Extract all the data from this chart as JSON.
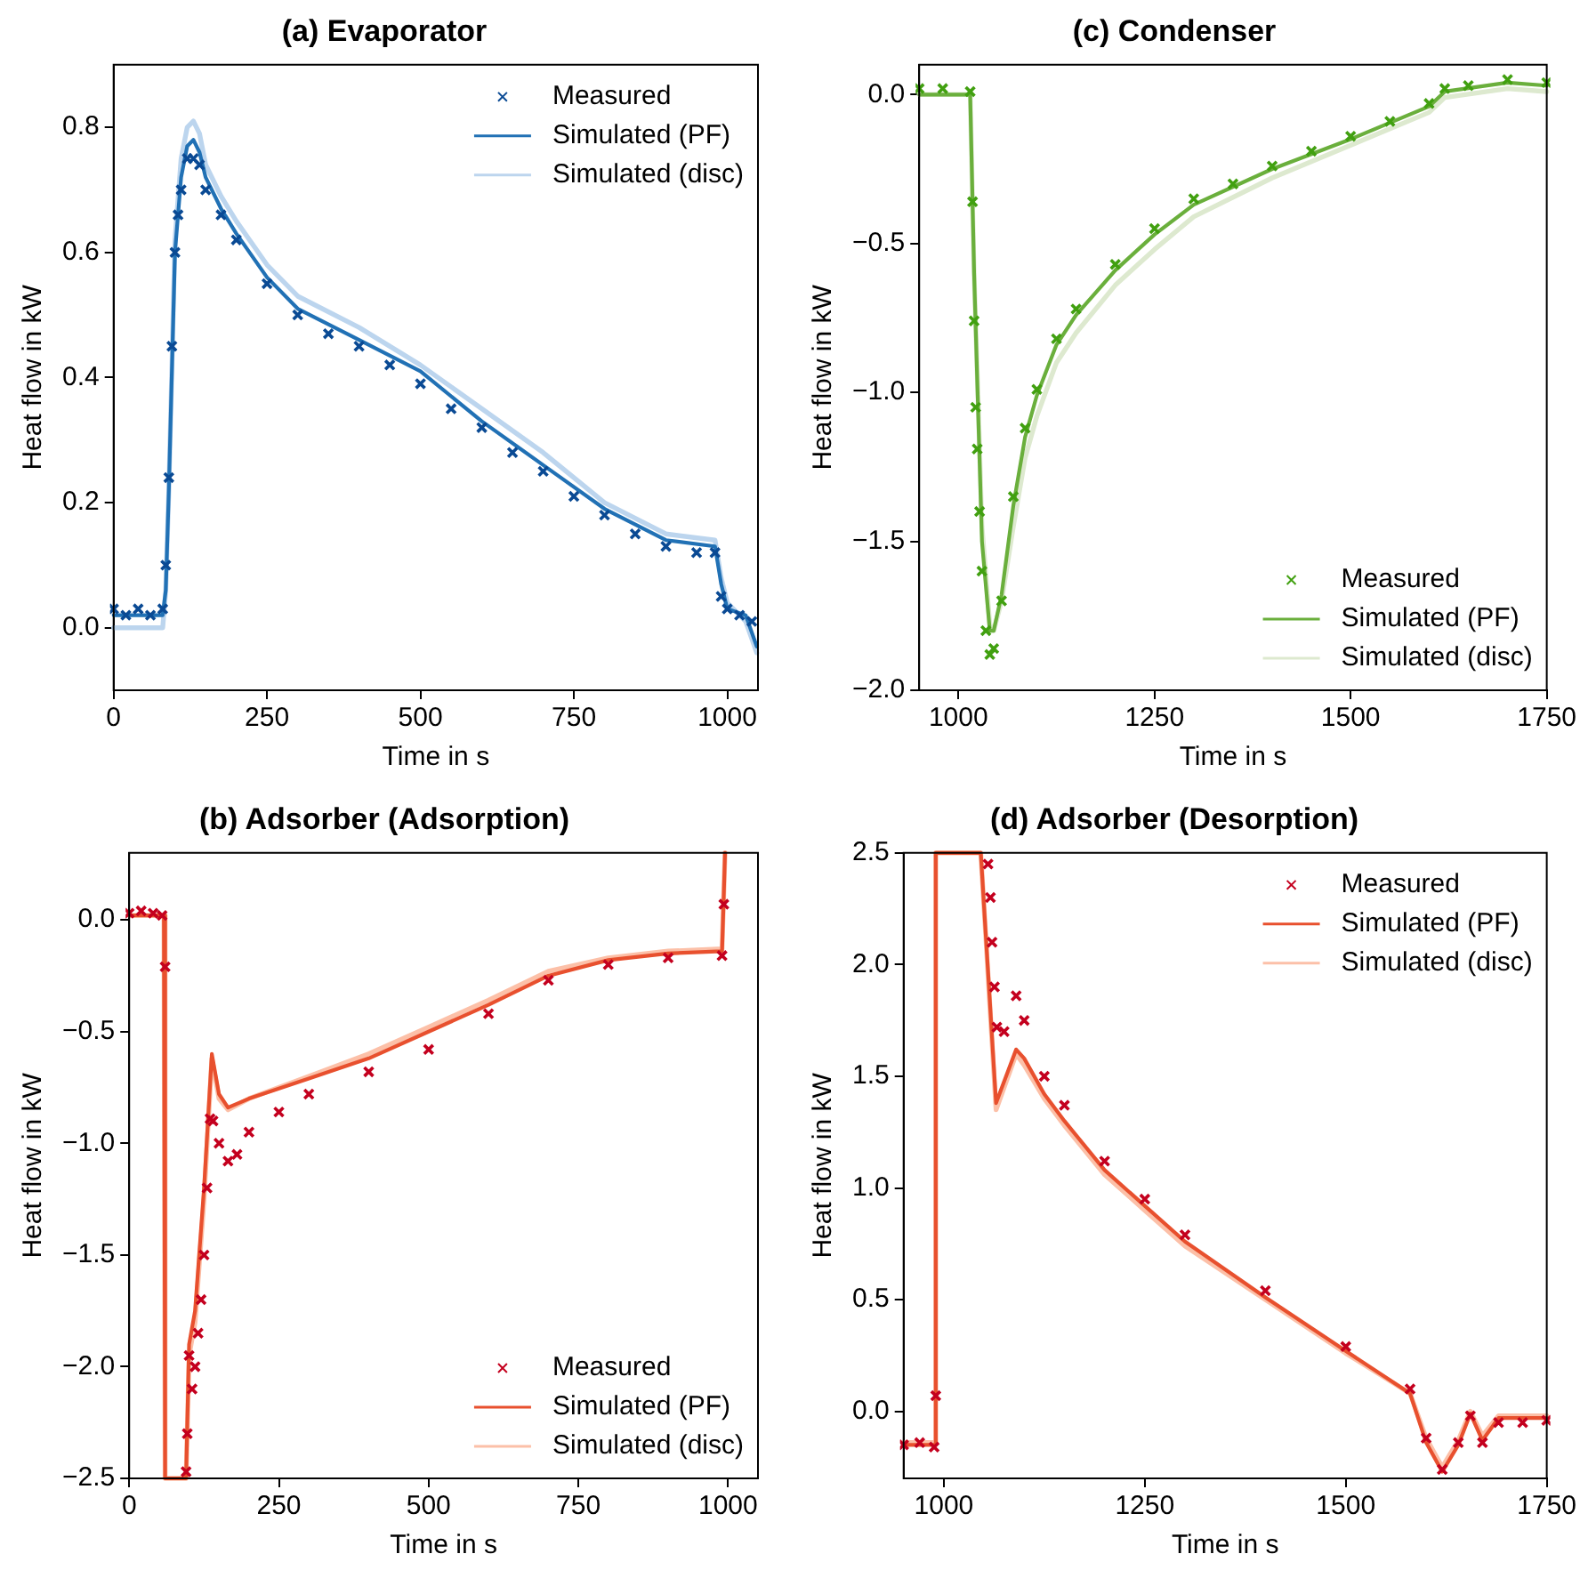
{
  "chart_data": [
    {
      "type": "line",
      "title": "(a) Evaporator",
      "xlabel": "Time in s",
      "ylabel": "Heat flow in kW",
      "xlim": [
        0,
        1050
      ],
      "xticks": [
        0,
        250,
        500,
        750,
        1000
      ],
      "ylim": [
        -0.1,
        0.9
      ],
      "yticks": [
        {
          "value": 0,
          "label": "0.0"
        },
        {
          "value": 0.2,
          "label": "0.2"
        },
        {
          "value": 0.4,
          "label": "0.4"
        },
        {
          "value": 0.6,
          "label": "0.6"
        },
        {
          "value": 0.8,
          "label": "0.8"
        }
      ],
      "legend": "top right",
      "series": [
        {
          "name": "Measured",
          "type": "scatter",
          "marker": "cross",
          "color": "#0a4a94",
          "x": [
            0,
            20,
            40,
            60,
            80,
            85,
            90,
            95,
            100,
            105,
            110,
            120,
            130,
            140,
            150,
            175,
            200,
            250,
            300,
            350,
            400,
            450,
            500,
            550,
            600,
            650,
            700,
            750,
            800,
            850,
            900,
            950,
            980,
            990,
            1000,
            1020,
            1040
          ],
          "values": [
            0.03,
            0.02,
            0.03,
            0.02,
            0.03,
            0.1,
            0.24,
            0.45,
            0.6,
            0.66,
            0.7,
            0.75,
            0.75,
            0.74,
            0.7,
            0.66,
            0.62,
            0.55,
            0.5,
            0.47,
            0.45,
            0.42,
            0.39,
            0.35,
            0.32,
            0.28,
            0.25,
            0.21,
            0.18,
            0.15,
            0.13,
            0.12,
            0.12,
            0.05,
            0.03,
            0.02,
            0.01
          ]
        },
        {
          "name": "Simulated (PF)",
          "type": "line",
          "color": "#2171b5",
          "x": [
            0,
            80,
            85,
            90,
            100,
            110,
            120,
            130,
            140,
            150,
            175,
            200,
            250,
            300,
            400,
            500,
            600,
            700,
            800,
            900,
            980,
            990,
            1000,
            1030,
            1048
          ],
          "values": [
            0.02,
            0.02,
            0.06,
            0.22,
            0.6,
            0.72,
            0.77,
            0.78,
            0.76,
            0.72,
            0.67,
            0.63,
            0.56,
            0.51,
            0.46,
            0.41,
            0.33,
            0.26,
            0.19,
            0.14,
            0.13,
            0.07,
            0.03,
            0.02,
            -0.03
          ]
        },
        {
          "name": "Simulated (disc)",
          "type": "line",
          "color": "#bcd5ee",
          "x": [
            0,
            80,
            85,
            90,
            100,
            110,
            120,
            130,
            140,
            150,
            175,
            200,
            250,
            300,
            400,
            500,
            600,
            700,
            800,
            900,
            980,
            990,
            1000,
            1030,
            1048
          ],
          "values": [
            0.0,
            0.0,
            0.06,
            0.22,
            0.62,
            0.75,
            0.8,
            0.81,
            0.79,
            0.74,
            0.69,
            0.65,
            0.58,
            0.53,
            0.48,
            0.42,
            0.35,
            0.28,
            0.2,
            0.15,
            0.14,
            0.08,
            0.04,
            0.01,
            -0.04
          ]
        }
      ]
    },
    {
      "type": "line",
      "title": "(c) Condenser",
      "xlabel": "Time in s",
      "ylabel": "Heat flow in kW",
      "xlim": [
        950,
        1750
      ],
      "xticks": [
        1000,
        1250,
        1500,
        1750
      ],
      "ylim": [
        -2.0,
        0.1
      ],
      "yticks": [
        {
          "value": 0,
          "label": "0.0"
        },
        {
          "value": -0.5,
          "label": "−0.5"
        },
        {
          "value": -1,
          "label": "−1.0"
        },
        {
          "value": -1.5,
          "label": "−1.5"
        },
        {
          "value": -2,
          "label": "−2.0"
        }
      ],
      "legend": "bottom right",
      "series": [
        {
          "name": "Measured",
          "type": "scatter",
          "marker": "cross",
          "color": "#41a010",
          "x": [
            950,
            980,
            1015,
            1018,
            1020,
            1022,
            1024,
            1027,
            1030,
            1035,
            1040,
            1045,
            1055,
            1070,
            1085,
            1100,
            1125,
            1150,
            1200,
            1250,
            1300,
            1350,
            1400,
            1450,
            1500,
            1550,
            1600,
            1620,
            1650,
            1700,
            1750
          ],
          "values": [
            0.02,
            0.02,
            0.01,
            -0.36,
            -0.76,
            -1.05,
            -1.19,
            -1.4,
            -1.6,
            -1.8,
            -1.88,
            -1.86,
            -1.7,
            -1.35,
            -1.12,
            -0.99,
            -0.82,
            -0.72,
            -0.57,
            -0.45,
            -0.35,
            -0.3,
            -0.24,
            -0.19,
            -0.14,
            -0.09,
            -0.03,
            0.02,
            0.03,
            0.05,
            0.04
          ]
        },
        {
          "name": "Simulated (PF)",
          "type": "line",
          "color": "#6aaf3c",
          "x": [
            950,
            1015,
            1020,
            1030,
            1040,
            1045,
            1055,
            1070,
            1085,
            1100,
            1125,
            1150,
            1200,
            1250,
            1300,
            1400,
            1500,
            1600,
            1620,
            1700,
            1750
          ],
          "values": [
            0.0,
            0.0,
            -0.6,
            -1.5,
            -1.8,
            -1.8,
            -1.68,
            -1.38,
            -1.15,
            -1.01,
            -0.84,
            -0.74,
            -0.59,
            -0.47,
            -0.37,
            -0.25,
            -0.15,
            -0.04,
            0.01,
            0.04,
            0.03
          ]
        },
        {
          "name": "Simulated (disc)",
          "type": "line",
          "color": "#dde9cf",
          "x": [
            950,
            1015,
            1020,
            1030,
            1040,
            1045,
            1055,
            1070,
            1085,
            1100,
            1125,
            1150,
            1200,
            1250,
            1300,
            1400,
            1500,
            1600,
            1620,
            1700,
            1750
          ],
          "values": [
            0.0,
            0.0,
            -0.6,
            -1.45,
            -1.78,
            -1.8,
            -1.7,
            -1.45,
            -1.22,
            -1.08,
            -0.9,
            -0.8,
            -0.64,
            -0.52,
            -0.41,
            -0.28,
            -0.17,
            -0.06,
            -0.01,
            0.02,
            0.01
          ]
        }
      ]
    },
    {
      "type": "line",
      "title": "(b) Adsorber (Adsorption)",
      "xlabel": "Time in s",
      "ylabel": "Heat flow in kW",
      "xlim": [
        0,
        1050
      ],
      "xticks": [
        0,
        250,
        500,
        750,
        1000
      ],
      "ylim": [
        -2.5,
        0.3
      ],
      "yticks": [
        {
          "value": 0,
          "label": "0.0"
        },
        {
          "value": -0.5,
          "label": "−0.5"
        },
        {
          "value": -1,
          "label": "−1.0"
        },
        {
          "value": -1.5,
          "label": "−1.5"
        },
        {
          "value": -2,
          "label": "−2.0"
        },
        {
          "value": -2.5,
          "label": "−2.5"
        }
      ],
      "legend": "bottom right",
      "series": [
        {
          "name": "Measured",
          "type": "scatter",
          "marker": "cross",
          "color": "#c4001e",
          "x": [
            0,
            20,
            40,
            55,
            60,
            95,
            97,
            100,
            105,
            110,
            115,
            120,
            125,
            130,
            135,
            140,
            150,
            165,
            180,
            200,
            250,
            300,
            400,
            500,
            600,
            700,
            800,
            900,
            990,
            993
          ],
          "values": [
            0.03,
            0.04,
            0.03,
            0.02,
            -0.21,
            -2.47,
            -2.3,
            -1.95,
            -2.1,
            -2.0,
            -1.85,
            -1.7,
            -1.5,
            -1.2,
            -0.89,
            -0.9,
            -1.0,
            -1.08,
            -1.05,
            -0.95,
            -0.86,
            -0.78,
            -0.68,
            -0.58,
            -0.42,
            -0.27,
            -0.2,
            -0.17,
            -0.16,
            0.07
          ]
        },
        {
          "name": "Simulated (PF)",
          "type": "line",
          "color": "#e8502e",
          "x": [
            0,
            58,
            60,
            95,
            100,
            110,
            125,
            138,
            150,
            165,
            200,
            300,
            400,
            500,
            600,
            700,
            800,
            900,
            990,
            995
          ],
          "values": [
            0.02,
            0.02,
            -2.5,
            -2.5,
            -1.9,
            -1.75,
            -1.2,
            -0.6,
            -0.78,
            -0.84,
            -0.8,
            -0.71,
            -0.62,
            -0.5,
            -0.38,
            -0.25,
            -0.18,
            -0.15,
            -0.14,
            0.3
          ]
        },
        {
          "name": "Simulated (disc)",
          "type": "line",
          "color": "#fcc0a8",
          "x": [
            0,
            58,
            60,
            95,
            100,
            110,
            125,
            138,
            150,
            165,
            200,
            300,
            400,
            500,
            600,
            700,
            800,
            900,
            990,
            995
          ],
          "values": [
            0.02,
            0.02,
            -2.5,
            -2.5,
            -1.95,
            -1.8,
            -1.25,
            -0.62,
            -0.8,
            -0.85,
            -0.8,
            -0.7,
            -0.6,
            -0.48,
            -0.36,
            -0.23,
            -0.17,
            -0.14,
            -0.13,
            0.3
          ]
        }
      ]
    },
    {
      "type": "line",
      "title": "(d) Adsorber (Desorption)",
      "xlabel": "Time in s",
      "ylabel": "Heat flow in kW",
      "xlim": [
        950,
        1750
      ],
      "xticks": [
        1000,
        1250,
        1500,
        1750
      ],
      "ylim": [
        -0.3,
        2.5
      ],
      "yticks": [
        {
          "value": 0,
          "label": "0.0"
        },
        {
          "value": 0.5,
          "label": "0.5"
        },
        {
          "value": 1,
          "label": "1.0"
        },
        {
          "value": 1.5,
          "label": "1.5"
        },
        {
          "value": 2,
          "label": "2.0"
        },
        {
          "value": 2.5,
          "label": "2.5"
        }
      ],
      "legend": "top right",
      "series": [
        {
          "name": "Measured",
          "type": "scatter",
          "marker": "cross",
          "color": "#c4001e",
          "x": [
            950,
            970,
            988,
            990,
            1055,
            1058,
            1060,
            1063,
            1066,
            1075,
            1090,
            1100,
            1125,
            1150,
            1200,
            1250,
            1300,
            1400,
            1500,
            1580,
            1600,
            1620,
            1640,
            1655,
            1670,
            1690,
            1720,
            1750
          ],
          "values": [
            -0.15,
            -0.14,
            -0.16,
            0.07,
            2.45,
            2.3,
            2.1,
            1.9,
            1.72,
            1.7,
            1.86,
            1.75,
            1.5,
            1.37,
            1.12,
            0.95,
            0.79,
            0.54,
            0.29,
            0.1,
            -0.12,
            -0.26,
            -0.14,
            -0.02,
            -0.14,
            -0.05,
            -0.05,
            -0.04
          ]
        },
        {
          "name": "Simulated (PF)",
          "type": "line",
          "color": "#e8502e",
          "x": [
            950,
            988,
            990,
            1046,
            1065,
            1090,
            1100,
            1125,
            1150,
            1200,
            1250,
            1300,
            1400,
            1500,
            1580,
            1600,
            1620,
            1640,
            1655,
            1670,
            1690,
            1750
          ],
          "values": [
            -0.15,
            -0.15,
            2.5,
            2.5,
            1.38,
            1.62,
            1.58,
            1.42,
            1.3,
            1.08,
            0.92,
            0.76,
            0.51,
            0.27,
            0.08,
            -0.14,
            -0.27,
            -0.15,
            -0.01,
            -0.13,
            -0.03,
            -0.03
          ]
        },
        {
          "name": "Simulated (disc)",
          "type": "line",
          "color": "#fcc0a8",
          "x": [
            950,
            988,
            990,
            1046,
            1065,
            1090,
            1100,
            1125,
            1150,
            1200,
            1250,
            1300,
            1400,
            1500,
            1580,
            1600,
            1620,
            1640,
            1655,
            1670,
            1690,
            1750
          ],
          "values": [
            -0.14,
            -0.14,
            2.5,
            2.5,
            1.35,
            1.6,
            1.55,
            1.4,
            1.28,
            1.06,
            0.9,
            0.74,
            0.5,
            0.26,
            0.08,
            -0.12,
            -0.25,
            -0.13,
            0.0,
            -0.11,
            -0.02,
            -0.02
          ]
        }
      ]
    }
  ]
}
